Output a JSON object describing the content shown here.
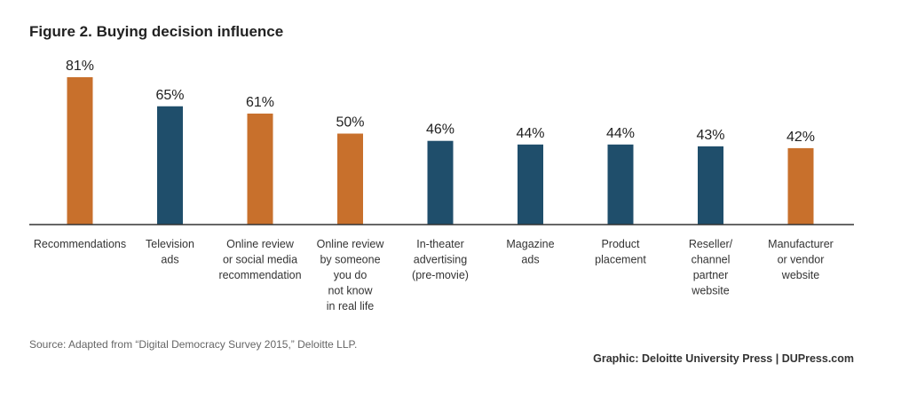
{
  "chart_data": {
    "type": "bar",
    "title": "Figure 2. Buying decision influence",
    "categories": [
      [
        "Recommendations"
      ],
      [
        "Television",
        "ads"
      ],
      [
        "Online review",
        "or social media",
        "recommendation"
      ],
      [
        "Online review",
        "by someone",
        "you do",
        "not know",
        "in real life"
      ],
      [
        "In-theater",
        "advertising",
        "(pre-movie)"
      ],
      [
        "Magazine",
        "ads"
      ],
      [
        "Product",
        "placement"
      ],
      [
        "Reseller/",
        "channel",
        "partner",
        "website"
      ],
      [
        "Manufacturer",
        "or vendor",
        "website"
      ]
    ],
    "values": [
      81,
      65,
      61,
      50,
      46,
      44,
      44,
      43,
      42
    ],
    "value_labels": [
      "81%",
      "65%",
      "61%",
      "50%",
      "46%",
      "44%",
      "44%",
      "43%",
      "42%"
    ],
    "bar_colors": [
      "#c8702c",
      "#1f4e6b",
      "#c8702c",
      "#c8702c",
      "#1f4e6b",
      "#1f4e6b",
      "#1f4e6b",
      "#1f4e6b",
      "#c8702c"
    ],
    "ylim": [
      0,
      100
    ],
    "xlabel": "",
    "ylabel": "",
    "grid": false
  },
  "source": "Source: Adapted from “Digital Democracy Survey 2015,” Deloitte LLP.",
  "credit": "Graphic: Deloitte University Press  |  DUPress.com",
  "colors": {
    "orange": "#c8702c",
    "navy": "#1f4e6b",
    "axis": "#333333"
  }
}
